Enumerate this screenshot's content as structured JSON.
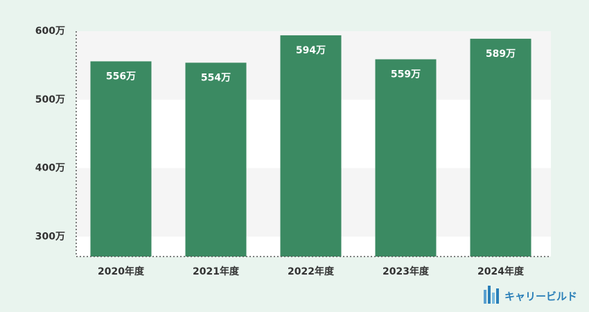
{
  "chart_data": {
    "type": "bar",
    "categories": [
      "2020年度",
      "2021年度",
      "2022年度",
      "2023年度",
      "2024年度"
    ],
    "values": [
      556,
      554,
      594,
      559,
      589
    ],
    "value_labels": [
      "556万",
      "554万",
      "594万",
      "559万",
      "589万"
    ],
    "color": "#3b8a62",
    "ylim": [
      271,
      600
    ],
    "yticks": [
      {
        "value": 300,
        "label": "300万"
      },
      {
        "value": 400,
        "label": "400万"
      },
      {
        "value": 500,
        "label": "500万"
      },
      {
        "value": 600,
        "label": "600万"
      }
    ],
    "grid": true
  },
  "brand": "キャリービルド"
}
